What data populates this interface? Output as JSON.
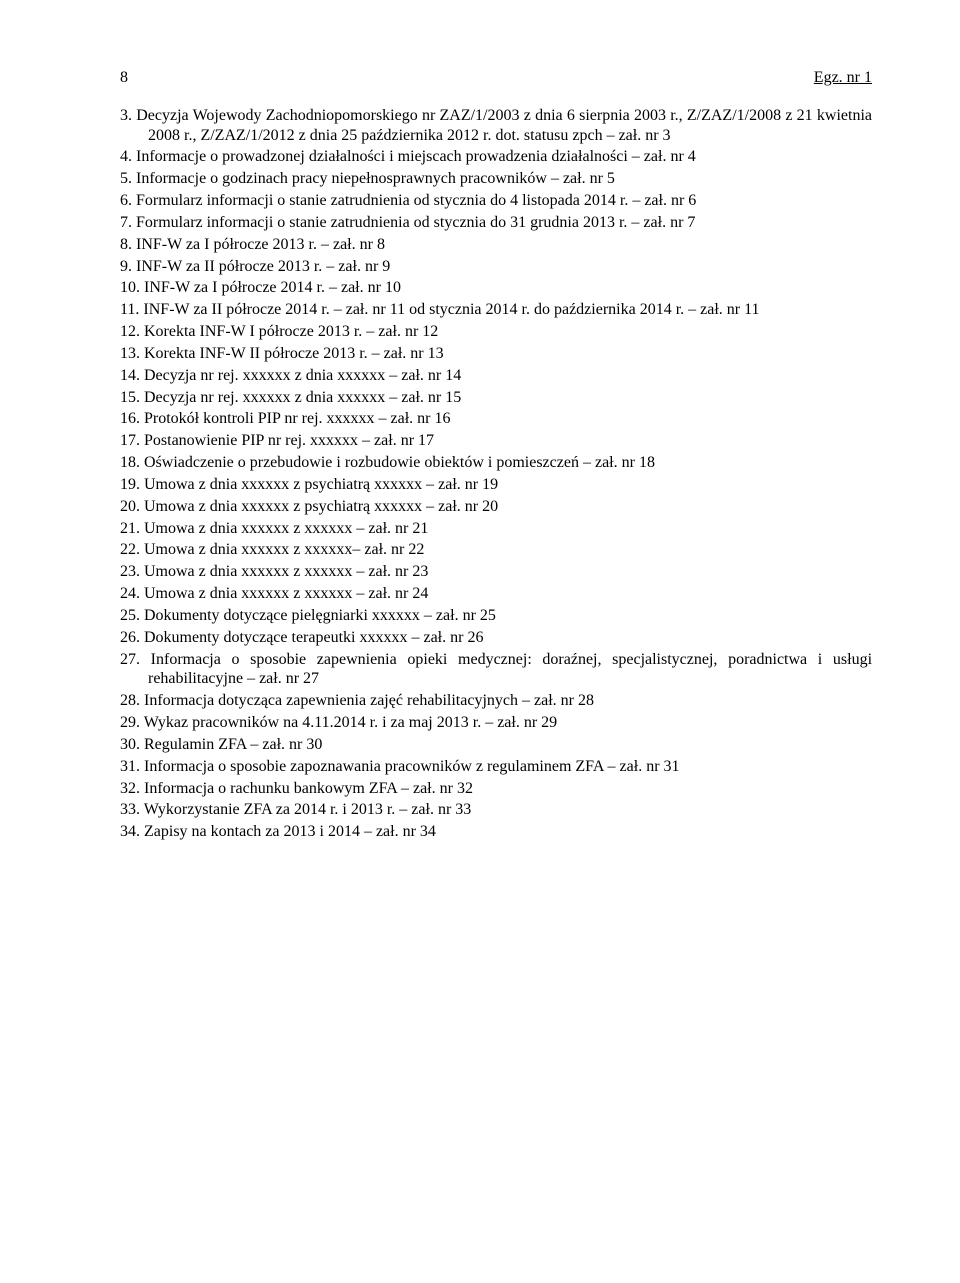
{
  "header": {
    "page_number": "8",
    "doc_id": "Egz. nr 1"
  },
  "items": [
    "Decyzja Wojewody Zachodniopomorskiego nr ZAZ/1/2003 z dnia 6 sierpnia 2003 r., Z/ZAZ/1/2008 z 21 kwietnia 2008 r., Z/ZAZ/1/2012 z dnia 25 października 2012 r. dot. statusu zpch – zał. nr 3",
    "Informacje o prowadzonej działalności i miejscach prowadzenia działalności – zał. nr 4",
    "Informacje o godzinach pracy niepełnosprawnych pracowników – zał. nr 5",
    "Formularz informacji o stanie zatrudnienia od stycznia do 4 listopada 2014 r. – zał. nr 6",
    "Formularz informacji o stanie zatrudnienia od stycznia do 31 grudnia 2013 r. – zał. nr 7",
    "INF-W za I półrocze 2013 r. – zał. nr 8",
    "INF-W za II półrocze 2013 r. – zał. nr 9",
    "INF-W za I półrocze 2014 r. – zał. nr 10",
    "INF-W za II półrocze 2014 r. – zał. nr 11 od stycznia 2014 r. do października 2014 r. – zał. nr 11",
    "Korekta INF-W I półrocze 2013 r. – zał. nr 12",
    "Korekta INF-W II półrocze 2013 r. – zał. nr 13",
    "Decyzja nr rej. xxxxxx z dnia xxxxxx  – zał. nr 14",
    "Decyzja  nr rej. xxxxxx z dnia xxxxxx – zał. nr 15",
    "Protokół kontroli PIP nr rej. xxxxxx – zał. nr 16",
    "Postanowienie PIP nr rej. xxxxxx  – zał. nr 17",
    "Oświadczenie o przebudowie i rozbudowie obiektów i pomieszczeń – zał. nr 18",
    "Umowa z dnia xxxxxx z psychiatrą xxxxxx – zał. nr 19",
    "Umowa z dnia xxxxxx z psychiatrą xxxxxx – zał. nr 20",
    "Umowa z dnia xxxxxx z xxxxxx – zał. nr 21",
    "Umowa z dnia xxxxxx z xxxxxx– zał. nr 22",
    "Umowa z dnia xxxxxx z xxxxxx – zał. nr 23",
    "Umowa z dnia xxxxxx z xxxxxx – zał. nr 24",
    "Dokumenty dotyczące pielęgniarki xxxxxx – zał. nr 25",
    "Dokumenty dotyczące terapeutki xxxxxx – zał. nr 26",
    "Informacja o sposobie zapewnienia opieki medycznej: doraźnej, specjalistycznej, poradnictwa i usługi rehabilitacyjne – zał. nr 27",
    "Informacja dotycząca zapewnienia zajęć rehabilitacyjnych – zał. nr 28",
    "Wykaz pracowników na 4.11.2014 r. i za maj 2013 r. – zał. nr 29",
    "Regulamin ZFA – zał. nr 30",
    "Informacja o sposobie zapoznawania pracowników z regulaminem ZFA – zał. nr 31",
    "Informacja o rachunku bankowym ZFA – zał. nr 32",
    "Wykorzystanie ZFA za 2014 r. i 2013 r. – zał. nr 33",
    "Zapisy na kontach za 2013 i 2014 – zał. nr 34"
  ]
}
